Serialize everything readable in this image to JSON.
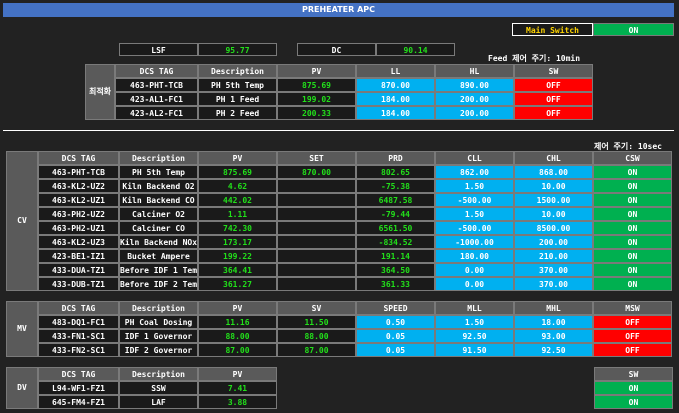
{
  "title": "PREHEATER APC",
  "main_switch": {
    "label": "Main Switch",
    "status": "ON"
  },
  "lsf": {
    "label": "LSF",
    "value": "95.77"
  },
  "dc": {
    "label": "DC",
    "value": "90.14"
  },
  "feed_cycle": "Feed 제어 주기: 10min",
  "ctrl_cycle": "제어 주기: 10sec",
  "opt": {
    "side_label": "최적화",
    "headers": [
      "DCS TAG",
      "Description",
      "PV",
      "LL",
      "HL",
      "SW"
    ],
    "rows": [
      {
        "tag": "463-PHT-TCB",
        "desc": "PH 5th Temp",
        "pv": "875.69",
        "ll": "870.00",
        "hl": "890.00",
        "sw": "OFF"
      },
      {
        "tag": "423-AL1-FC1",
        "desc": "PH 1 Feed",
        "pv": "199.02",
        "ll": "184.00",
        "hl": "200.00",
        "sw": "OFF"
      },
      {
        "tag": "423-AL2-FC1",
        "desc": "PH 2 Feed",
        "pv": "200.33",
        "ll": "184.00",
        "hl": "200.00",
        "sw": "OFF"
      }
    ]
  },
  "cv": {
    "side_label": "CV",
    "headers": [
      "DCS TAG",
      "Description",
      "PV",
      "SET",
      "PRD",
      "CLL",
      "CHL",
      "CSW"
    ],
    "rows": [
      {
        "tag": "463-PHT-TCB",
        "desc": "PH 5th Temp",
        "pv": "875.69",
        "set": "870.00",
        "prd": "802.65",
        "cll": "862.00",
        "chl": "868.00",
        "csw": "ON"
      },
      {
        "tag": "463-KL2-UZ2",
        "desc": "Kiln Backend O2",
        "pv": "4.62",
        "set": "",
        "prd": "-75.38",
        "cll": "1.50",
        "chl": "10.00",
        "csw": "ON"
      },
      {
        "tag": "463-KL2-UZ1",
        "desc": "Kiln Backend CO",
        "pv": "442.02",
        "set": "",
        "prd": "6487.58",
        "cll": "-500.00",
        "chl": "1500.00",
        "csw": "ON"
      },
      {
        "tag": "463-PH2-UZ2",
        "desc": "Calciner O2",
        "pv": "1.11",
        "set": "",
        "prd": "-79.44",
        "cll": "1.50",
        "chl": "10.00",
        "csw": "ON"
      },
      {
        "tag": "463-PH2-UZ1",
        "desc": "Calciner CO",
        "pv": "742.30",
        "set": "",
        "prd": "6561.50",
        "cll": "-500.00",
        "chl": "8500.00",
        "csw": "ON"
      },
      {
        "tag": "463-KL2-UZ3",
        "desc": "Kiln Backend NOx",
        "pv": "173.17",
        "set": "",
        "prd": "-834.52",
        "cll": "-1000.00",
        "chl": "200.00",
        "csw": "ON"
      },
      {
        "tag": "423-BE1-IZ1",
        "desc": "Bucket Ampere",
        "pv": "199.22",
        "set": "",
        "prd": "191.14",
        "cll": "180.00",
        "chl": "210.00",
        "csw": "ON"
      },
      {
        "tag": "433-DUA-TZ1",
        "desc": "Before IDF 1 Temp",
        "pv": "364.41",
        "set": "",
        "prd": "364.50",
        "cll": "0.00",
        "chl": "370.00",
        "csw": "ON"
      },
      {
        "tag": "433-DUB-TZ1",
        "desc": "Before IDF 2 Temp",
        "pv": "361.27",
        "set": "",
        "prd": "361.33",
        "cll": "0.00",
        "chl": "370.00",
        "csw": "ON"
      }
    ]
  },
  "mv": {
    "side_label": "MV",
    "headers": [
      "DCS TAG",
      "Description",
      "PV",
      "SV",
      "SPEED",
      "MLL",
      "MHL",
      "MSW"
    ],
    "rows": [
      {
        "tag": "483-DQ1-FC1",
        "desc": "PH Coal Dosing",
        "pv": "11.16",
        "sv": "11.50",
        "speed": "0.50",
        "mll": "1.50",
        "mhl": "18.00",
        "msw": "OFF"
      },
      {
        "tag": "433-FN1-SC1",
        "desc": "IDF 1 Governor",
        "pv": "88.00",
        "sv": "88.00",
        "speed": "0.05",
        "mll": "92.50",
        "mhl": "93.00",
        "msw": "OFF"
      },
      {
        "tag": "433-FN2-SC1",
        "desc": "IDF 2 Governor",
        "pv": "87.00",
        "sv": "87.00",
        "speed": "0.05",
        "mll": "91.50",
        "mhl": "92.50",
        "msw": "OFF"
      }
    ]
  },
  "dv": {
    "side_label": "DV",
    "headers": [
      "DCS TAG",
      "Description",
      "PV"
    ],
    "sw_header": "SW",
    "rows": [
      {
        "tag": "L94-WF1-FZ1",
        "desc": "SSW",
        "pv": "7.41",
        "sw": "ON"
      },
      {
        "tag": "645-FM4-FZ1",
        "desc": "LAF",
        "pv": "3.88",
        "sw": "ON"
      }
    ]
  }
}
